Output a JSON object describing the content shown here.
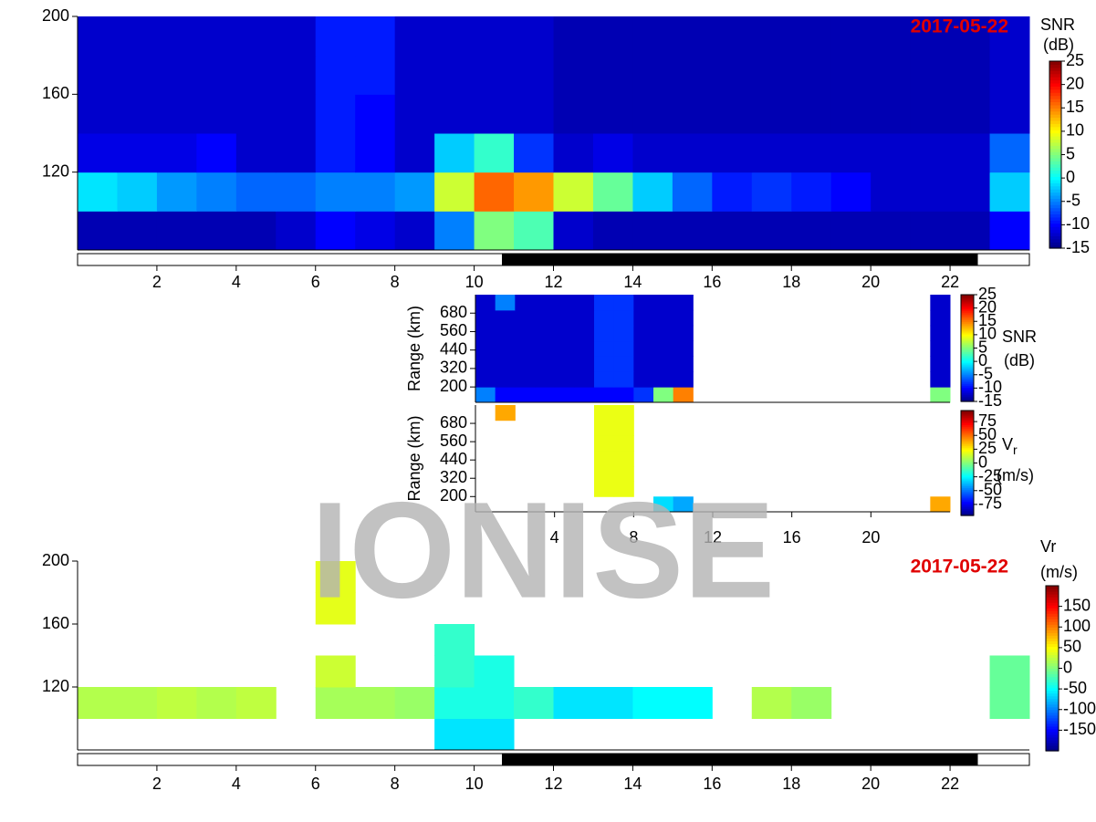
{
  "watermark": "IONISE",
  "chart_data": [
    {
      "type": "heatmap",
      "date": "2017-05-22",
      "xlim": [
        0,
        24
      ],
      "ylim": [
        80,
        200
      ],
      "xticks": [
        2,
        4,
        6,
        8,
        10,
        12,
        14,
        16,
        18,
        20,
        22
      ],
      "yticks": [
        120,
        160,
        200
      ],
      "night": [
        10.7,
        22.7
      ],
      "colorbar": {
        "label": "SNR",
        "unit": "(dB)",
        "lim": [
          -15,
          25
        ],
        "ticks": [
          -15,
          -10,
          -5,
          0,
          5,
          10,
          15,
          20,
          25
        ]
      },
      "z": [
        [
          -13,
          -13,
          -13,
          -13,
          -13,
          -12,
          -10,
          -11,
          -12,
          -5,
          5,
          3,
          -12,
          -13,
          -13,
          -13,
          -13,
          -13,
          -13,
          -13,
          -13,
          -13,
          -13,
          -10
        ],
        [
          -1,
          -2,
          -4,
          -5,
          -6,
          -6,
          -5,
          -5,
          -4,
          8,
          16,
          14,
          8,
          4,
          -2,
          -6,
          -9,
          -8,
          -9,
          -10,
          -12,
          -12,
          -12,
          -2
        ],
        [
          -11,
          -11,
          -11,
          -10,
          -12,
          -12,
          -9,
          -10,
          -12,
          -2,
          2,
          -8,
          -12,
          -11,
          -12,
          -12,
          -12,
          -12,
          -12,
          -12,
          -12,
          -12,
          -12,
          -6
        ],
        [
          -12,
          -12,
          -12,
          -12,
          -12,
          -12,
          -9,
          -10,
          -12,
          -12,
          -12,
          -12,
          -13,
          -13,
          -13,
          -13,
          -13,
          -13,
          -13,
          -13,
          -13,
          -13,
          -13,
          -12
        ],
        [
          -12,
          -12,
          -12,
          -12,
          -12,
          -12,
          -9,
          -9,
          -12,
          -12,
          -12,
          -12,
          -13,
          -13,
          -13,
          -13,
          -13,
          -13,
          -13,
          -13,
          -13,
          -13,
          -13,
          -12
        ],
        [
          -12,
          -12,
          -12,
          -12,
          -12,
          -12,
          -9,
          -9,
          -12,
          -12,
          -12,
          -12,
          -13,
          -13,
          -13,
          -13,
          -13,
          -13,
          -13,
          -13,
          -13,
          -13,
          -13,
          -12
        ]
      ]
    },
    {
      "type": "heatmap",
      "xlim": [
        0,
        24
      ],
      "ylim": [
        100,
        800
      ],
      "yticks": [
        200,
        320,
        440,
        560,
        680
      ],
      "ylabel": "Range (km)",
      "colorbar": {
        "label": "SNR",
        "unit": "(dB)",
        "lim": [
          -15,
          25
        ],
        "ticks": [
          -15,
          -10,
          -5,
          0,
          5,
          10,
          15,
          20,
          25
        ]
      },
      "z": [
        [
          -5,
          -10,
          -10,
          -10,
          -10,
          -10,
          -10,
          -10,
          -8,
          5,
          15,
          null,
          null,
          null,
          null,
          null,
          null,
          null,
          null,
          null,
          null,
          null,
          null,
          5
        ],
        [
          -12,
          -12,
          -12,
          -12,
          -12,
          -12,
          -8,
          -8,
          -12,
          -12,
          -12,
          null,
          null,
          null,
          null,
          null,
          null,
          null,
          null,
          null,
          null,
          null,
          null,
          -12
        ],
        [
          -12,
          -12,
          -12,
          -12,
          -12,
          -12,
          -8,
          -8,
          -12,
          -12,
          -12,
          null,
          null,
          null,
          null,
          null,
          null,
          null,
          null,
          null,
          null,
          null,
          null,
          -12
        ],
        [
          -12,
          -12,
          -12,
          -12,
          -12,
          -12,
          -8,
          -8,
          -12,
          -12,
          -12,
          null,
          null,
          null,
          null,
          null,
          null,
          null,
          null,
          null,
          null,
          null,
          null,
          -12
        ],
        [
          -12,
          -12,
          -12,
          -12,
          -12,
          -12,
          -8,
          -8,
          -12,
          -12,
          -12,
          null,
          null,
          null,
          null,
          null,
          null,
          null,
          null,
          null,
          null,
          null,
          null,
          -12
        ],
        [
          -12,
          -12,
          -12,
          -12,
          -12,
          -12,
          -8,
          -8,
          -12,
          -12,
          -12,
          null,
          null,
          null,
          null,
          null,
          null,
          null,
          null,
          null,
          null,
          null,
          null,
          -12
        ],
        [
          -12,
          -5,
          -12,
          -12,
          -12,
          -12,
          -8,
          -8,
          -12,
          -12,
          -12,
          null,
          null,
          null,
          null,
          null,
          null,
          null,
          null,
          null,
          null,
          null,
          null,
          -12
        ]
      ]
    },
    {
      "type": "heatmap",
      "xlim": [
        0,
        24
      ],
      "ylim": [
        100,
        800
      ],
      "xticks": [
        4,
        8,
        12,
        16,
        20
      ],
      "yticks": [
        200,
        320,
        440,
        560,
        680
      ],
      "ylabel": "Range (km)",
      "colorbar": {
        "label": "V",
        "label_sub": "r",
        "unit": "(m/s)",
        "lim": [
          -95,
          95
        ],
        "ticks": [
          -75,
          -50,
          -25,
          0,
          25,
          50,
          75
        ]
      },
      "z": [
        [
          null,
          null,
          null,
          null,
          null,
          null,
          null,
          null,
          null,
          -30,
          -40,
          null,
          null,
          null,
          null,
          null,
          null,
          null,
          null,
          null,
          null,
          null,
          null,
          40
        ],
        [
          null,
          null,
          null,
          null,
          null,
          null,
          20,
          20,
          null,
          null,
          null,
          null,
          null,
          null,
          null,
          null,
          null,
          null,
          null,
          null,
          null,
          null,
          null,
          null
        ],
        [
          null,
          null,
          null,
          null,
          null,
          null,
          20,
          20,
          null,
          null,
          null,
          null,
          null,
          null,
          null,
          null,
          null,
          null,
          null,
          null,
          null,
          null,
          null,
          null
        ],
        [
          null,
          null,
          null,
          null,
          null,
          null,
          20,
          20,
          null,
          null,
          null,
          null,
          null,
          null,
          null,
          null,
          null,
          null,
          null,
          null,
          null,
          null,
          null,
          null
        ],
        [
          null,
          null,
          null,
          null,
          null,
          null,
          20,
          20,
          null,
          null,
          null,
          null,
          null,
          null,
          null,
          null,
          null,
          null,
          null,
          null,
          null,
          null,
          null,
          null
        ],
        [
          null,
          null,
          null,
          null,
          null,
          null,
          20,
          20,
          null,
          null,
          null,
          null,
          null,
          null,
          null,
          null,
          null,
          null,
          null,
          null,
          null,
          null,
          null,
          null
        ],
        [
          null,
          40,
          null,
          null,
          null,
          null,
          20,
          20,
          null,
          null,
          null,
          null,
          null,
          null,
          null,
          null,
          null,
          null,
          null,
          null,
          null,
          null,
          null,
          null
        ]
      ]
    },
    {
      "type": "heatmap",
      "date": "2017-05-22",
      "xlim": [
        0,
        24
      ],
      "ylim": [
        80,
        200
      ],
      "xticks": [
        2,
        4,
        6,
        8,
        10,
        12,
        14,
        16,
        18,
        20,
        22
      ],
      "yticks": [
        120,
        160,
        200
      ],
      "night": [
        10.7,
        22.7
      ],
      "colorbar": {
        "label": "Vr",
        "unit": "(m/s)",
        "lim": [
          -200,
          200
        ],
        "ticks": [
          -150,
          -100,
          -50,
          0,
          50,
          100,
          150
        ]
      },
      "z": [
        [
          null,
          null,
          null,
          null,
          null,
          null,
          null,
          null,
          null,
          -60,
          -60,
          null,
          null,
          null,
          null,
          null,
          null,
          null,
          null,
          null,
          null,
          null,
          null,
          null
        ],
        [
          20,
          20,
          25,
          20,
          25,
          null,
          15,
          15,
          10,
          -40,
          -40,
          -30,
          -60,
          -60,
          -50,
          -50,
          null,
          20,
          10,
          null,
          null,
          null,
          null,
          -10
        ],
        [
          null,
          null,
          null,
          null,
          null,
          null,
          30,
          null,
          null,
          -30,
          -40,
          null,
          null,
          null,
          null,
          null,
          null,
          null,
          null,
          null,
          null,
          null,
          null,
          -10
        ],
        [
          null,
          null,
          null,
          null,
          null,
          null,
          null,
          null,
          null,
          -30,
          null,
          null,
          null,
          null,
          null,
          null,
          null,
          null,
          null,
          null,
          null,
          null,
          null,
          null
        ],
        [
          null,
          null,
          null,
          null,
          null,
          null,
          40,
          null,
          null,
          null,
          null,
          null,
          null,
          null,
          null,
          null,
          null,
          null,
          null,
          null,
          null,
          null,
          null,
          null
        ],
        [
          null,
          null,
          null,
          null,
          null,
          null,
          40,
          null,
          null,
          null,
          null,
          null,
          null,
          null,
          null,
          null,
          null,
          null,
          null,
          null,
          null,
          null,
          null,
          null
        ]
      ]
    }
  ]
}
